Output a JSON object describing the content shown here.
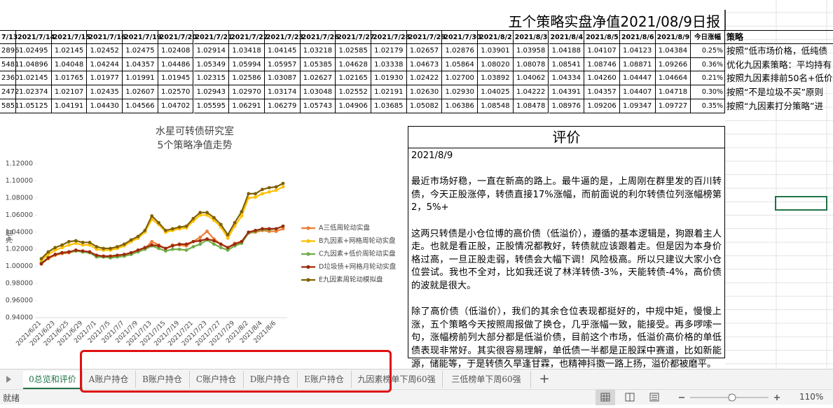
{
  "sheet": {
    "title": "五个策略实盘净值2021/08/9日报",
    "table": {
      "header": [
        "7/13",
        "2021/7/14",
        "2021/7/15",
        "2021/7/16",
        "2021/7/19",
        "2021/7/20",
        "2021/7/21",
        "2021/7/22",
        "2021/7/23",
        "2021/7/26",
        "2021/7/27",
        "2021/7/28",
        "2021/7/29",
        "2021/7/30",
        "2021/8/2",
        "2021/8/3",
        "2021/8/4",
        "2021/8/5",
        "2021/8/6",
        "2021/8/9",
        "今日涨幅",
        "策略"
      ],
      "rows": [
        [
          "2896",
          "1.02495",
          "1.02145",
          "1.02452",
          "1.02475",
          "1.02408",
          "1.02914",
          "1.03418",
          "1.04145",
          "1.03218",
          "1.02585",
          "1.02179",
          "1.02657",
          "1.02876",
          "1.03901",
          "1.03958",
          "1.04188",
          "1.04107",
          "1.04123",
          "1.04384",
          "0.25%",
          "按照“低市场价格，低纯债"
        ],
        [
          "5481",
          "1.04896",
          "1.04048",
          "1.04244",
          "1.04357",
          "1.04486",
          "1.05349",
          "1.05994",
          "1.05957",
          "1.05385",
          "1.04628",
          "1.03338",
          "1.04673",
          "1.05864",
          "1.08020",
          "1.08078",
          "1.08541",
          "1.08746",
          "1.08871",
          "1.09266",
          "0.36%",
          "优化九因素策略：平均持有"
        ],
        [
          "2360",
          "1.02145",
          "1.01765",
          "1.01977",
          "1.01991",
          "1.01945",
          "1.02315",
          "1.02586",
          "1.03087",
          "1.02627",
          "1.02165",
          "1.01930",
          "1.02422",
          "1.02700",
          "1.03892",
          "1.04062",
          "1.04334",
          "1.04260",
          "1.04447",
          "1.04664",
          "0.21%",
          "按照九因素排前50名+低价"
        ],
        [
          "2472",
          "1.02374",
          "1.02107",
          "1.02435",
          "1.02607",
          "1.02570",
          "1.02943",
          "1.02970",
          "1.03174",
          "1.03048",
          "1.02552",
          "1.02191",
          "1.02630",
          "1.02930",
          "1.04025",
          "1.04222",
          "1.04391",
          "1.04357",
          "1.04407",
          "1.04718",
          "0.30%",
          "按照“不是垃圾不买”原则"
        ],
        [
          "5851",
          "1.05125",
          "1.04191",
          "1.04430",
          "1.04566",
          "1.04702",
          "1.05595",
          "1.06291",
          "1.06279",
          "1.05743",
          "1.04906",
          "1.03685",
          "1.05082",
          "1.06386",
          "1.08548",
          "1.08478",
          "1.08976",
          "1.09206",
          "1.09347",
          "1.09727",
          "0.35%",
          "按照“九因素打分策略”进"
        ]
      ]
    },
    "comment": {
      "title": "评价",
      "date": "2021/8/9",
      "paragraphs": [
        "最近市场好稳，一直在新高的路上。最牛逼的是，上周刚在群里发的百川转债，今天正股涨停，转债直接17%涨幅，而前面说的利尔转债位列涨幅榜第2，5%+",
        "这两只转债是小仓位博的高价债（低溢价），遵循的基本逻辑是，狗跟着主人走。也就是看正股，正股情况都教好，转债就应该跟着走。但是因为本身价格过高，一旦正股走弱，转债会大幅下调！风险极高。所以只建议大家小仓位尝试。我也不全对，比如我还说了林洋转债-3%，天能转债-4%，高价债的波就是很大。",
        "除了高价债（低溢价），我们的其余仓位表现都挺好的，中规中矩，慢慢上涨，五个策略今天按照周报做了换仓，几乎涨幅一致，能接受。再多啰嗦一句，涨幅榜前列大部分都是低溢价债，目前这个市场，低溢价高价格的单低债表现非常好。其实很容易理解，单低债一半都是正股踩中赛道，比如新能源，储能等，于是转债久旱逢甘霖，也精神抖擞一路上扬，溢价都被磨平。"
      ]
    },
    "tabs": [
      "0总览和评价",
      "A账户持仓",
      "B账户持仓",
      "C账户持仓",
      "D账户持仓",
      "E账户持仓",
      "九因素榜单下周60强",
      "三低榜单下周60强",
      "+"
    ],
    "status": {
      "ready": "就绪",
      "zoom": "110%"
    }
  },
  "chart_data": {
    "type": "line",
    "title": "水星可转债研究室",
    "subtitle": "5个策略净值走势",
    "y_label": "净值",
    "categories": [
      "2021/6/21",
      null,
      "2021/6/23",
      null,
      "2021/6/25",
      null,
      "2021/6/29",
      null,
      "2021/7/1",
      null,
      "2021/7/5",
      null,
      "2021/7/7",
      null,
      "2021/7/9",
      null,
      "2021/7/13",
      null,
      "2021/7/15",
      null,
      "2021/7/19",
      null,
      "2021/7/21",
      null,
      "2021/7/23",
      null,
      "2021/7/27",
      null,
      "2021/7/29",
      null,
      "2021/8/2",
      null,
      "2021/8/4",
      null,
      "2021/8/6",
      null
    ],
    "ylim": [
      0.94,
      1.12
    ],
    "yticks": [
      {
        "value": 0.94,
        "label": "0.94000"
      },
      {
        "value": 0.96,
        "label": "0.96000"
      },
      {
        "value": 0.98,
        "label": "0.98000"
      },
      {
        "value": 1.0,
        "label": "1.00000"
      },
      {
        "value": 1.02,
        "label": "1.02000"
      },
      {
        "value": 1.04,
        "label": "1.04000"
      },
      {
        "value": 1.06,
        "label": "1.06000"
      },
      {
        "value": 1.08,
        "label": "1.08000"
      },
      {
        "value": 1.1,
        "label": "1.10000"
      },
      {
        "value": 1.12,
        "label": "1.12000"
      }
    ],
    "grid": false,
    "series": [
      {
        "name": "A三低周轮动实盘",
        "color": "#ed7d31",
        "values": [
          1.003,
          1.009,
          1.013,
          1.015,
          1.016,
          1.018,
          1.017,
          1.016,
          1.012,
          1.011,
          1.011,
          1.012,
          1.013,
          1.015,
          1.018,
          1.021,
          1.029,
          1.025,
          1.021,
          1.025,
          1.025,
          1.024,
          1.029,
          1.034,
          1.041,
          1.032,
          1.026,
          1.022,
          1.027,
          1.029,
          1.039,
          1.04,
          1.042,
          1.041,
          1.041,
          1.044
        ]
      },
      {
        "name": "B九因素+网格周轮动实盘",
        "color": "#ffc000",
        "values": [
          1.007,
          1.014,
          1.019,
          1.022,
          1.025,
          1.027,
          1.025,
          1.025,
          1.02,
          1.019,
          1.019,
          1.021,
          1.024,
          1.029,
          1.033,
          1.04,
          1.055,
          1.049,
          1.04,
          1.042,
          1.044,
          1.045,
          1.053,
          1.06,
          1.06,
          1.054,
          1.046,
          1.033,
          1.047,
          1.059,
          1.08,
          1.081,
          1.085,
          1.087,
          1.089,
          1.093
        ]
      },
      {
        "name": "C九因素+低价周轮动实盘",
        "color": "#70ad47",
        "values": [
          1.004,
          1.01,
          1.014,
          1.016,
          1.017,
          1.018,
          1.017,
          1.016,
          1.011,
          1.011,
          1.01,
          1.011,
          1.012,
          1.014,
          1.017,
          1.02,
          1.024,
          1.021,
          1.018,
          1.02,
          1.02,
          1.019,
          1.023,
          1.026,
          1.031,
          1.026,
          1.022,
          1.019,
          1.024,
          1.027,
          1.039,
          1.041,
          1.043,
          1.043,
          1.044,
          1.047
        ]
      },
      {
        "name": "D垃圾债+网格月轮动实盘",
        "color": "#9e2a0a",
        "values": [
          1.003,
          1.01,
          1.014,
          1.016,
          1.017,
          1.019,
          1.018,
          1.017,
          1.013,
          1.012,
          1.012,
          1.013,
          1.014,
          1.016,
          1.019,
          1.022,
          1.025,
          1.024,
          1.021,
          1.024,
          1.026,
          1.026,
          1.029,
          1.03,
          1.032,
          1.03,
          1.026,
          1.022,
          1.026,
          1.029,
          1.04,
          1.042,
          1.044,
          1.044,
          1.044,
          1.047
        ]
      },
      {
        "name": "E九因素周轮动模拟盘",
        "color": "#7f6000",
        "values": [
          1.009,
          1.017,
          1.022,
          1.025,
          1.029,
          1.03,
          1.028,
          1.028,
          1.023,
          1.021,
          1.021,
          1.023,
          1.026,
          1.031,
          1.035,
          1.042,
          1.059,
          1.051,
          1.042,
          1.044,
          1.046,
          1.047,
          1.056,
          1.063,
          1.063,
          1.057,
          1.049,
          1.037,
          1.051,
          1.064,
          1.085,
          1.085,
          1.09,
          1.092,
          1.093,
          1.097
        ]
      }
    ]
  }
}
